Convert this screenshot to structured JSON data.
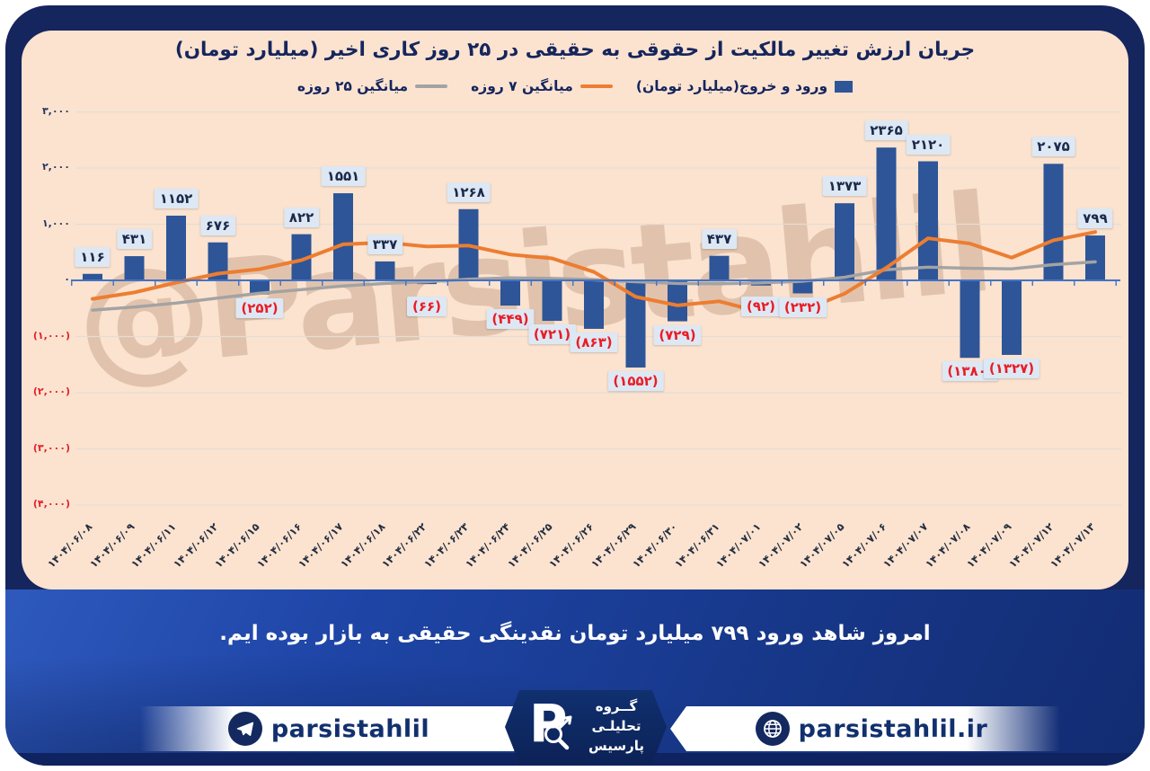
{
  "title": "جریان ارزش تغییر مالکیت از حقوقی به حقیقی در ۲۵ روز کاری اخیر (میلیارد تومان)",
  "watermark": "@Parsistahlil",
  "colors": {
    "bar": "#2e5597",
    "ma7_line": "#ed7d31",
    "ma25_line": "#a3a3a3",
    "axis": "#4472c4",
    "negative": "#e42029",
    "card_bg": "#fbe3d0",
    "frame": "#15255d"
  },
  "legend": {
    "items": [
      {
        "label": "ورود و خروج(میلیارد تومان)",
        "marker": "square",
        "color": "#2e5597"
      },
      {
        "label": "میانگین ۷ روزه",
        "marker": "line",
        "color": "#ed7d31"
      },
      {
        "label": "میانگین ۲۵ روزه",
        "marker": "line",
        "color": "#a3a3a3"
      }
    ]
  },
  "y_axis": {
    "labels": [
      "۳,۰۰۰",
      "۲,۰۰۰",
      "۱,۰۰۰",
      "۰",
      "(۱,۰۰۰)",
      "(۲,۰۰۰)",
      "(۳,۰۰۰)",
      "(۴,۰۰۰)"
    ],
    "values": [
      3000,
      2000,
      1000,
      0,
      -1000,
      -2000,
      -3000,
      -4000
    ]
  },
  "chart_data": {
    "type": "combo",
    "title": "جریان ارزش تغییر مالکیت از حقوقی به حقیقی در ۲۵ روز کاری اخیر (میلیارد تومان)",
    "categories": [
      "۱۴۰۴/۰۶/۰۸",
      "۱۴۰۴/۰۶/۰۹",
      "۱۴۰۴/۰۶/۱۱",
      "۱۴۰۴/۰۶/۱۲",
      "۱۴۰۴/۰۶/۱۵",
      "۱۴۰۴/۰۶/۱۶",
      "۱۴۰۴/۰۶/۱۷",
      "۱۴۰۴/۰۶/۱۸",
      "۱۴۰۴/۰۶/۲۲",
      "۱۴۰۴/۰۶/۲۳",
      "۱۴۰۴/۰۶/۲۴",
      "۱۴۰۴/۰۶/۲۵",
      "۱۴۰۴/۰۶/۲۶",
      "۱۴۰۴/۰۶/۲۹",
      "۱۴۰۴/۰۶/۳۰",
      "۱۴۰۴/۰۶/۳۱",
      "۱۴۰۴/۰۷/۰۱",
      "۱۴۰۴/۰۷/۰۲",
      "۱۴۰۴/۰۷/۰۵",
      "۱۴۰۴/۰۷/۰۶",
      "۱۴۰۴/۰۷/۰۷",
      "۱۴۰۴/۰۷/۰۸",
      "۱۴۰۴/۰۷/۰۹",
      "۱۴۰۴/۰۷/۱۲",
      "۱۴۰۴/۰۷/۱۳"
    ],
    "series": [
      {
        "name": "ورود و خروج(میلیارد تومان)",
        "type": "bar",
        "color": "#2e5597",
        "values": [
          116,
          431,
          1152,
          676,
          -252,
          822,
          1551,
          337,
          -66,
          1268,
          -449,
          -721,
          -863,
          -1552,
          -729,
          437,
          -92,
          -232,
          1373,
          2365,
          2120,
          -1380,
          -1327,
          2075,
          799
        ],
        "labels": [
          "۱۱۶",
          "۴۳۱",
          "۱۱۵۲",
          "۶۷۶",
          "(۲۵۲)",
          "۸۲۲",
          "۱۵۵۱",
          "۳۳۷",
          "(۶۶)",
          "۱۲۶۸",
          "(۴۴۹)",
          "(۷۲۱)",
          "(۸۶۳)",
          "(۱۵۵۲)",
          "(۷۲۹)",
          "۴۳۷",
          "(۹۲)",
          "(۲۳۲)",
          "۱۳۷۳",
          "۲۳۶۵",
          "۲۱۲۰",
          "(۱۳۸۰)",
          "(۱۳۲۷)",
          "۲۰۷۵",
          "۷۹۹"
        ]
      },
      {
        "name": "میانگین ۷ روزه",
        "type": "line",
        "color": "#ed7d31",
        "values": [
          -330,
          -215,
          -40,
          120,
          200,
          360,
          642,
          674,
          603,
          619,
          459,
          392,
          151,
          -292,
          -445,
          -373,
          -567,
          -536,
          -237,
          224,
          749,
          656,
          404,
          713,
          861
        ]
      },
      {
        "name": "میانگین ۲۵ روزه",
        "type": "line",
        "color": "#a3a3a3",
        "values": [
          -530,
          -475,
          -405,
          -315,
          -230,
          -165,
          -100,
          -55,
          -25,
          20,
          45,
          35,
          10,
          -25,
          -55,
          -60,
          -45,
          -15,
          55,
          190,
          235,
          215,
          205,
          280,
          330
        ]
      }
    ],
    "ylim": [
      -4000,
      3000
    ],
    "grid": true,
    "legend_position": "top"
  },
  "message": "امروز شاهد ورود ۷۹۹ میلیارد تومان نقدینگی حقیقی به بازار بوده ایم.",
  "footer": {
    "telegram_handle": "parsistahlil",
    "website": "parsistahlil.ir",
    "logo_lines": [
      "گــروه",
      "تحلیلـی",
      "پارسیس"
    ]
  }
}
